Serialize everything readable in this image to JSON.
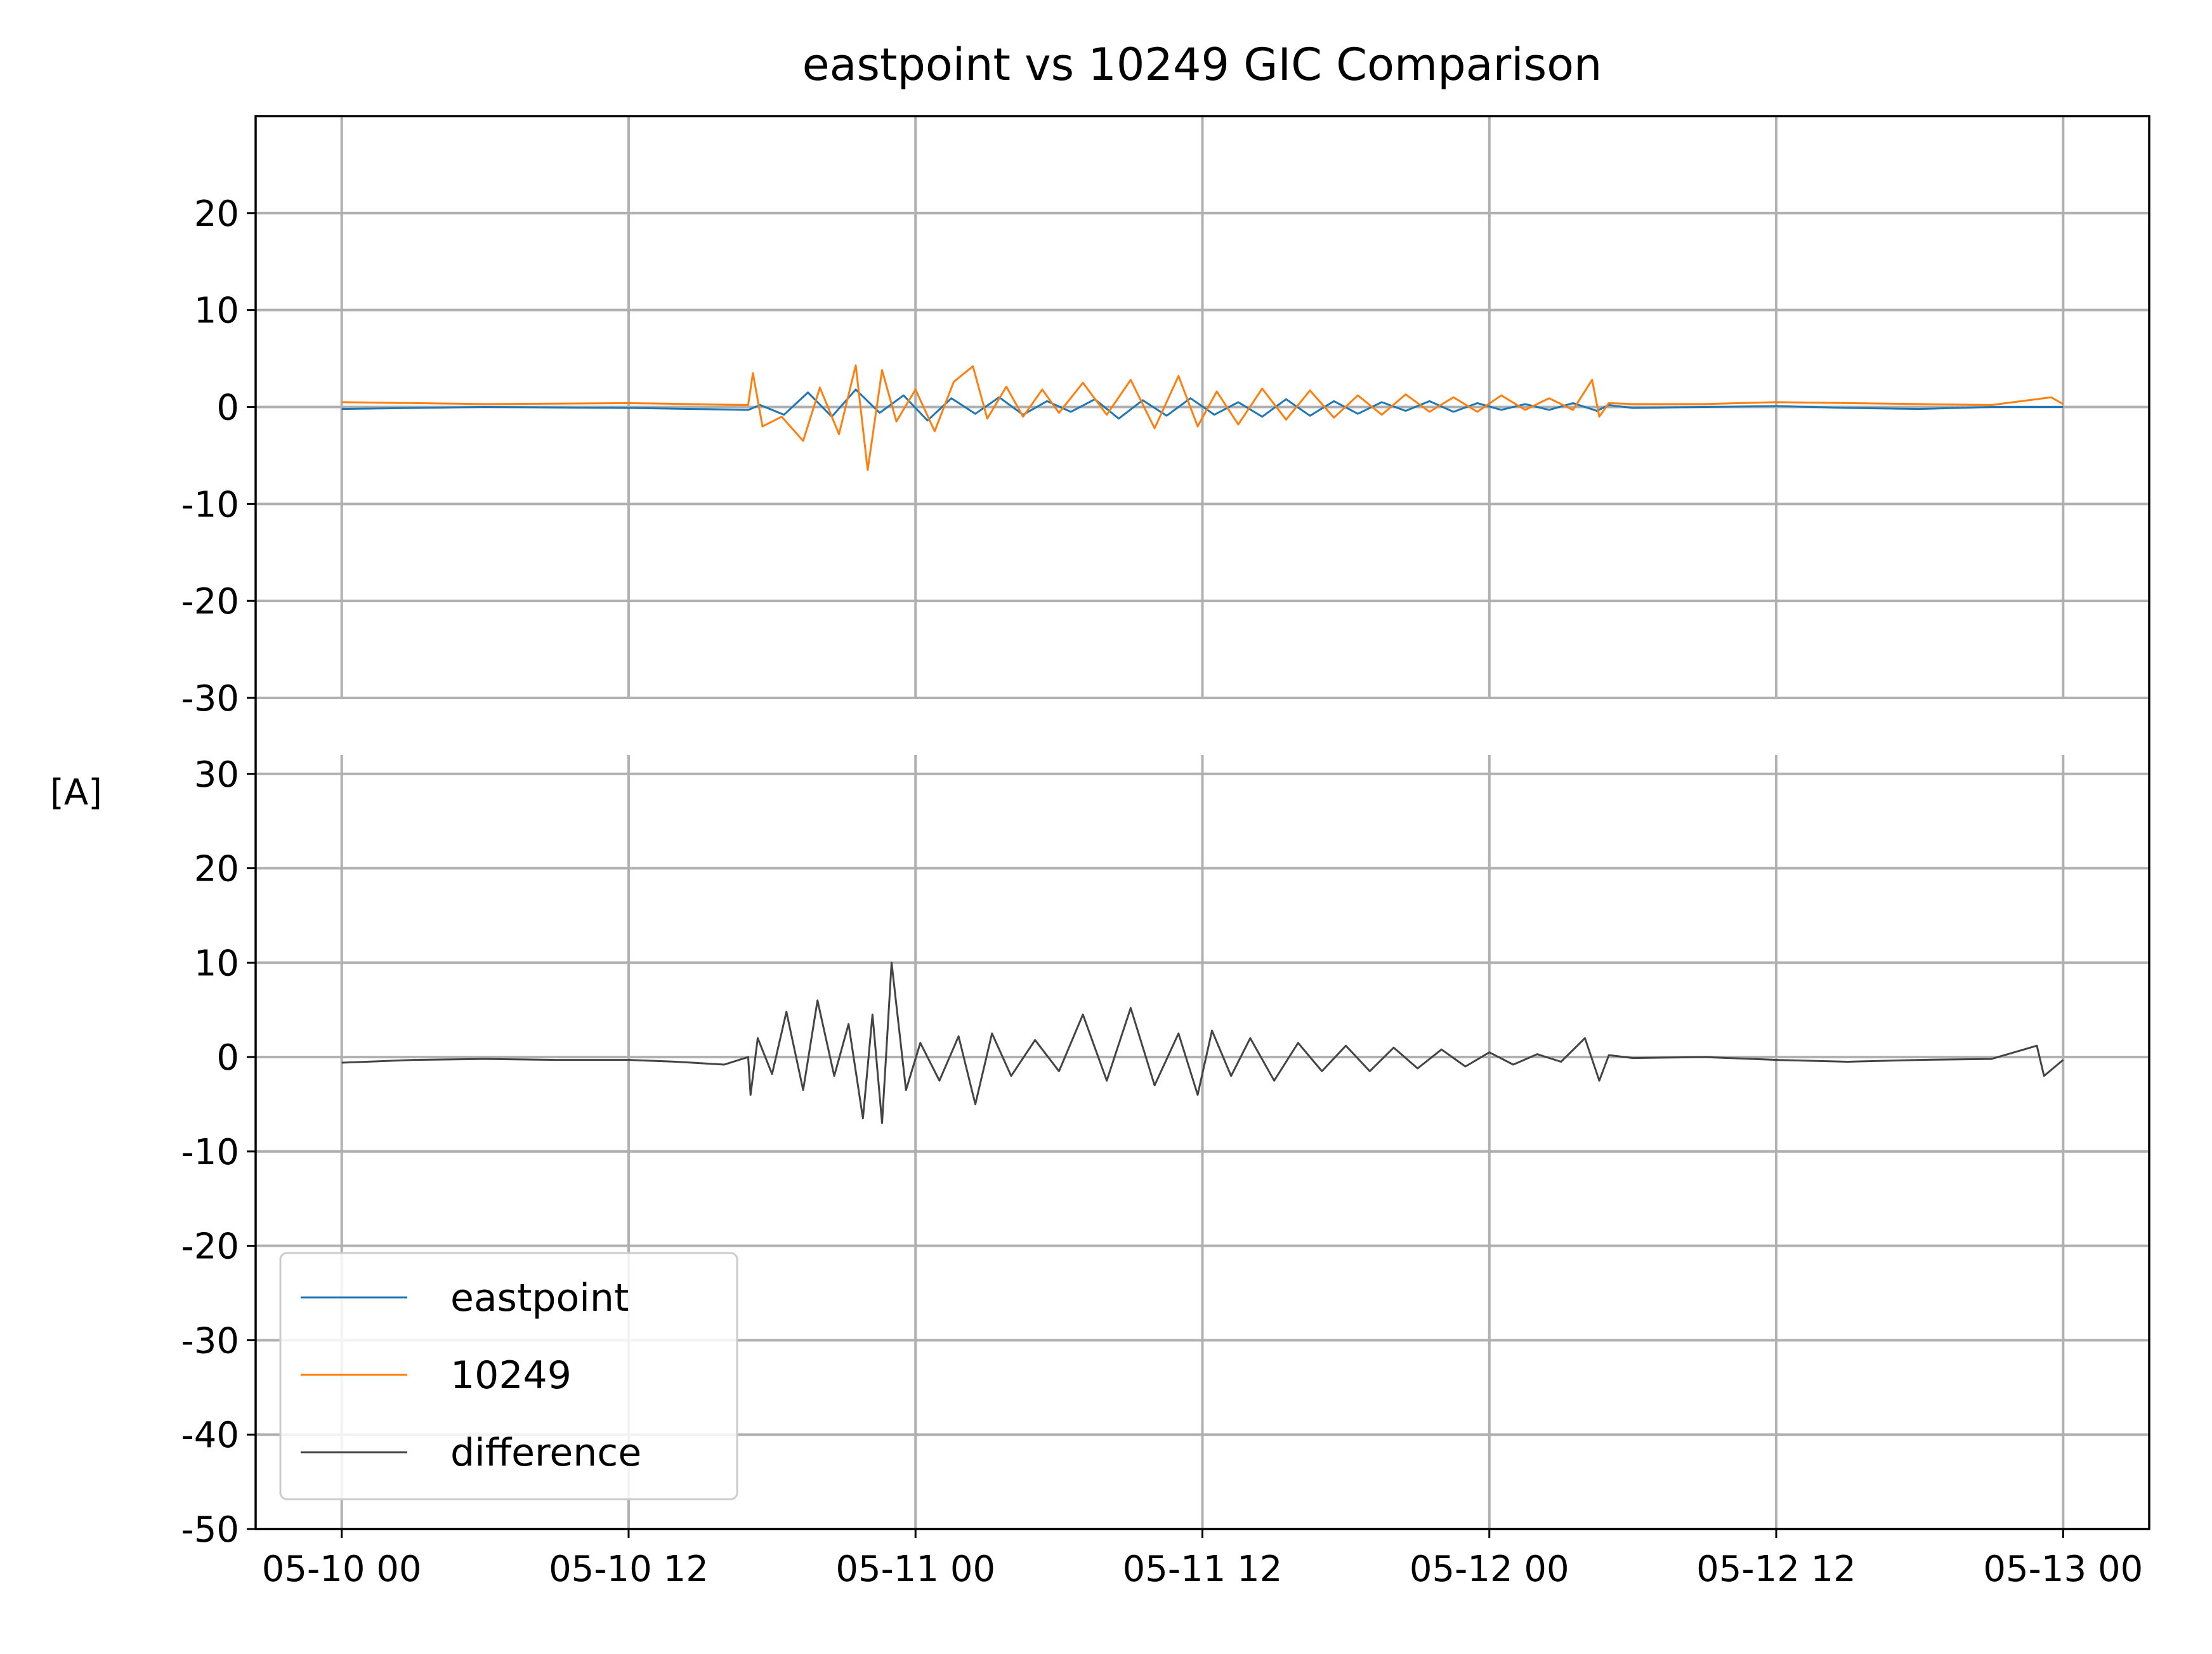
{
  "chart_data": {
    "type": "line",
    "title": "eastpoint vs 10249 GIC Comparison",
    "ylabel": "[A]",
    "x_tick_labels": [
      "05-10 00",
      "05-10 12",
      "05-11 00",
      "05-11 12",
      "05-12 00",
      "05-12 12",
      "05-13 00"
    ],
    "xlim_hours": [
      -3.6,
      75.6
    ],
    "legend": {
      "placement": "lower-left",
      "entries": [
        {
          "name": "eastpoint",
          "color": "#1f77b4"
        },
        {
          "name": "10249",
          "color": "#ff7f0e"
        },
        {
          "name": "difference",
          "color": "#444444"
        }
      ]
    },
    "grid": true,
    "panels": [
      {
        "name": "top",
        "ylim": [
          -30,
          30
        ],
        "yticks": [
          -30,
          -20,
          -10,
          0,
          10,
          20
        ],
        "series": [
          {
            "name": "eastpoint",
            "color": "#1f77b4",
            "x_hours": [
              0,
              6,
              12,
              17,
              17.5,
              18.5,
              19.5,
              20.5,
              21.5,
              22.5,
              23.5,
              24.5,
              25.5,
              26.5,
              27.5,
              28.5,
              29.5,
              30.5,
              31.5,
              32.5,
              33.5,
              34.5,
              35.5,
              36.5,
              37.5,
              38.5,
              39.5,
              40.5,
              41.5,
              42.5,
              43.5,
              44.5,
              45.5,
              46.5,
              47.5,
              48.5,
              49.5,
              50.5,
              51.5,
              52.5,
              53,
              54,
              57,
              60,
              63,
              66,
              69,
              72
            ],
            "y": [
              -0.2,
              0.0,
              -0.1,
              -0.3,
              0.2,
              -0.8,
              1.5,
              -1.0,
              1.8,
              -0.6,
              1.2,
              -1.4,
              0.9,
              -0.7,
              1.0,
              -0.8,
              0.6,
              -0.5,
              0.8,
              -1.2,
              0.7,
              -0.9,
              0.9,
              -0.8,
              0.5,
              -1.0,
              0.8,
              -0.9,
              0.6,
              -0.7,
              0.5,
              -0.4,
              0.6,
              -0.5,
              0.4,
              -0.3,
              0.3,
              -0.3,
              0.4,
              -0.4,
              0.2,
              -0.1,
              0.0,
              0.1,
              -0.1,
              -0.2,
              0.0,
              0.0
            ]
          },
          {
            "name": "10249",
            "color": "#ff7f0e",
            "x_hours": [
              0,
              6,
              12,
              17,
              17.2,
              17.6,
              18.4,
              19.3,
              20.0,
              20.8,
              21.5,
              22.0,
              22.6,
              23.2,
              24.0,
              24.8,
              25.6,
              26.4,
              27.0,
              27.8,
              28.5,
              29.3,
              30.0,
              31.0,
              32.0,
              33.0,
              34.0,
              35.0,
              35.8,
              36.6,
              37.5,
              38.5,
              39.5,
              40.5,
              41.5,
              42.5,
              43.5,
              44.5,
              45.5,
              46.5,
              47.5,
              48.5,
              49.5,
              50.5,
              51.5,
              52.3,
              52.6,
              53.0,
              54,
              57,
              60,
              63,
              66,
              69,
              71.5,
              72
            ],
            "y": [
              0.5,
              0.3,
              0.4,
              0.2,
              3.5,
              -2.0,
              -1.0,
              -3.5,
              2.0,
              -2.8,
              4.3,
              -6.5,
              3.8,
              -1.5,
              1.8,
              -2.5,
              2.6,
              4.2,
              -1.2,
              2.1,
              -1.0,
              1.8,
              -0.6,
              2.5,
              -0.8,
              2.8,
              -2.2,
              3.2,
              -2.0,
              1.6,
              -1.8,
              1.9,
              -1.3,
              1.7,
              -1.1,
              1.2,
              -0.8,
              1.3,
              -0.5,
              1.0,
              -0.5,
              1.2,
              -0.3,
              0.9,
              -0.3,
              2.8,
              -1.0,
              0.4,
              0.3,
              0.3,
              0.5,
              0.4,
              0.3,
              0.2,
              1.0,
              0.3
            ]
          }
        ]
      },
      {
        "name": "bottom",
        "ylim": [
          -50,
          32
        ],
        "yticks": [
          -50,
          -40,
          -30,
          -20,
          -10,
          0,
          10,
          20,
          30
        ],
        "series": [
          {
            "name": "difference",
            "color": "#444444",
            "x_hours": [
              0,
              3,
              6,
              9,
              12,
              14,
              16,
              17,
              17.1,
              17.4,
              18.0,
              18.6,
              19.3,
              19.9,
              20.6,
              21.2,
              21.8,
              22.2,
              22.6,
              23.0,
              23.6,
              24.2,
              25.0,
              25.8,
              26.5,
              27.2,
              28.0,
              29.0,
              30.0,
              31.0,
              32.0,
              33.0,
              34.0,
              35.0,
              35.8,
              36.4,
              37.2,
              38.0,
              39.0,
              40.0,
              41.0,
              42.0,
              43.0,
              44.0,
              45.0,
              46.0,
              47.0,
              48.0,
              49.0,
              50.0,
              51.0,
              52.0,
              52.6,
              53.0,
              54,
              57,
              60,
              63,
              66,
              69,
              70.9,
              71.2,
              72
            ],
            "y": [
              -0.6,
              -0.3,
              -0.2,
              -0.3,
              -0.3,
              -0.5,
              -0.8,
              0.0,
              -4.0,
              2.0,
              -1.8,
              4.8,
              -3.5,
              6.0,
              -2.0,
              3.5,
              -6.5,
              4.5,
              -7.0,
              10.0,
              -3.5,
              1.5,
              -2.5,
              2.2,
              -5.0,
              2.5,
              -2.0,
              1.8,
              -1.5,
              4.5,
              -2.5,
              5.2,
              -3.0,
              2.5,
              -4.0,
              2.8,
              -2.0,
              2.0,
              -2.5,
              1.5,
              -1.5,
              1.2,
              -1.5,
              1.0,
              -1.2,
              0.8,
              -1.0,
              0.5,
              -0.8,
              0.3,
              -0.5,
              2.0,
              -2.5,
              0.2,
              -0.1,
              0.0,
              -0.3,
              -0.5,
              -0.3,
              -0.2,
              1.2,
              -2.0,
              -0.3
            ]
          }
        ]
      }
    ]
  }
}
